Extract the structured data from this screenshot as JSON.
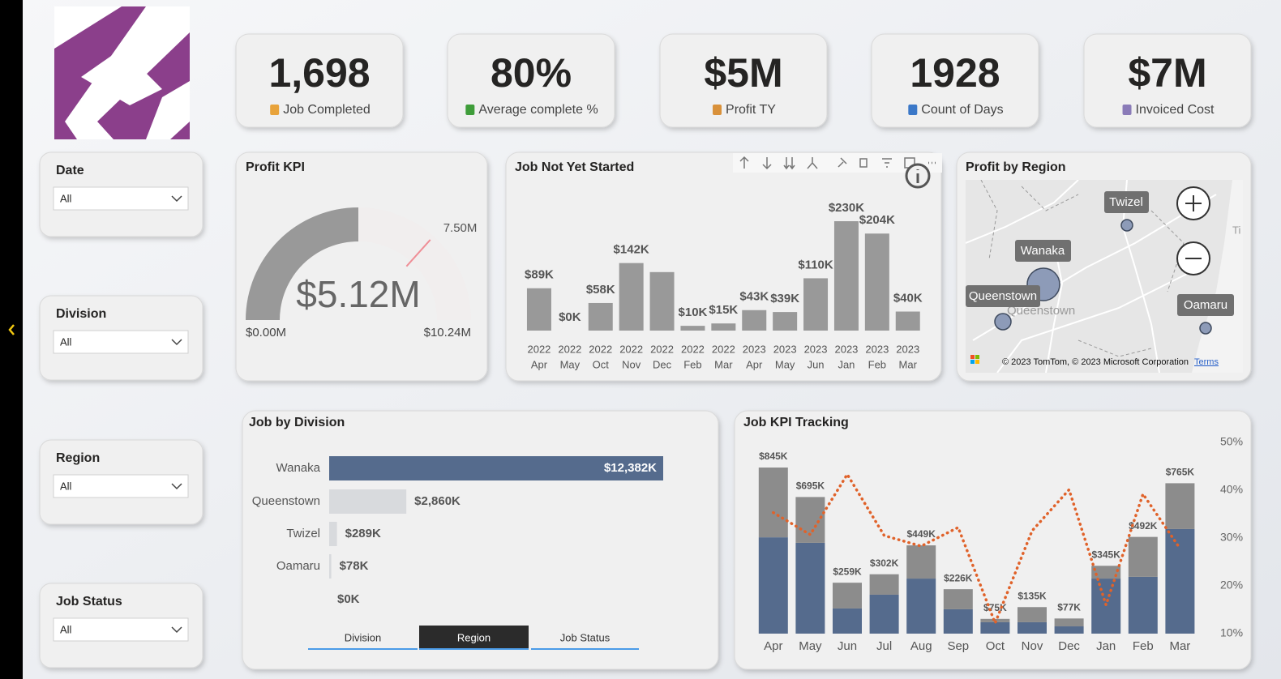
{
  "kpi_cards": [
    {
      "value": "1,698",
      "label": "Job Completed"
    },
    {
      "value": "80%",
      "label": "Average complete %"
    },
    {
      "value": "$5M",
      "label": "Profit TY"
    },
    {
      "value": "1928",
      "label": "Count of Days"
    },
    {
      "value": "$7M",
      "label": "Invoiced Cost"
    }
  ],
  "slicers": [
    {
      "title": "Date",
      "selection": "All"
    },
    {
      "title": "Division",
      "selection": "All"
    },
    {
      "title": "Region",
      "selection": "All"
    },
    {
      "title": "Job Status",
      "selection": "All"
    }
  ],
  "map": {
    "title": "Profit by Region",
    "places": [
      "Twizel",
      "Wanaka",
      "Queenstown",
      "Oamaru"
    ],
    "basemap_label": "Queenstown",
    "attribution": "© 2023 TomTom, © 2023 Microsoft Corporation",
    "terms": "Terms"
  },
  "tabs": [
    "Division",
    "Region",
    "Job Status"
  ],
  "chart_data": [
    {
      "type": "gauge",
      "title": "Profit KPI",
      "value": 5.12,
      "value_label": "$5.12M",
      "min": 0,
      "min_label": "$0.00M",
      "max": 10.24,
      "max_label": "$10.24M",
      "target": 7.5,
      "target_label": "7.50M",
      "color": "#999999",
      "target_color": "#ef8e96"
    },
    {
      "type": "bar",
      "title": "Job Not Yet Started",
      "categories": [
        [
          "2022",
          "Apr"
        ],
        [
          "2022",
          "May"
        ],
        [
          "2022",
          "Oct"
        ],
        [
          "2022",
          "Nov"
        ],
        [
          "2022",
          "Dec"
        ],
        [
          "2022",
          "Feb"
        ],
        [
          "2022",
          "Mar"
        ],
        [
          "2023",
          "Apr"
        ],
        [
          "2023",
          "May"
        ],
        [
          "2023",
          "Jun"
        ],
        [
          "2023",
          "Jan"
        ],
        [
          "2023",
          "Feb"
        ],
        [
          "2023",
          "Mar"
        ]
      ],
      "values": [
        89,
        0,
        58,
        142,
        123,
        10,
        15,
        43,
        39,
        110,
        230,
        204,
        40
      ],
      "value_labels": [
        "$89K",
        "$0K",
        "$58K",
        "$142K",
        null,
        "$10K",
        "$15K",
        "$43K",
        "$39K",
        "$110K",
        "$230K",
        "$204K",
        "$40K"
      ],
      "color": "#999999"
    },
    {
      "type": "hbar",
      "title": "Job by Division",
      "categories": [
        "Wanaka",
        "Queenstown",
        "Twizel",
        "Oamaru",
        null
      ],
      "values": [
        12382,
        2860,
        289,
        78,
        0
      ],
      "value_labels": [
        "$12,382K",
        "$2,860K",
        "$289K",
        "$78K",
        "$0K"
      ],
      "colors": [
        "#556b8d",
        "#d8dadd",
        "#d8dadd",
        "#d8dadd",
        "#d8dadd"
      ]
    },
    {
      "type": "combo",
      "title": "Job KPI Tracking",
      "categories": [
        "Apr",
        "May",
        "Jun",
        "Jul",
        "Aug",
        "Sep",
        "Oct",
        "Nov",
        "Dec",
        "Jan",
        "Feb",
        "Mar"
      ],
      "series": [
        {
          "color": "#556b8d",
          "values": [
            490,
            462,
            128,
            198,
            280,
            124,
            58,
            58,
            37,
            280,
            289,
            532
          ]
        },
        {
          "color": "#8c8c8c",
          "values": [
            355,
            233,
            131,
            104,
            169,
            102,
            17,
            77,
            40,
            65,
            203,
            233
          ]
        },
        {
          "color": "#e0622a",
          "axis": "y2",
          "values": [
            35.3,
            30.7,
            43.3,
            30.5,
            28.3,
            32.2,
            12.2,
            31.5,
            40.1,
            16,
            39.2,
            27.8
          ]
        }
      ],
      "totals": [
        845,
        695,
        259,
        302,
        449,
        226,
        75,
        135,
        77,
        345,
        492,
        765
      ],
      "total_labels": [
        "$845K",
        "$695K",
        "$259K",
        "$302K",
        "$449K",
        "$226K",
        "$75K",
        "$135K",
        "$77K",
        "$345K",
        "$492K",
        "$765K"
      ],
      "y2lim": [
        10,
        51
      ],
      "y2ticks": [
        {
          "value": 10,
          "label": "10%"
        },
        {
          "value": 20,
          "label": "20%"
        },
        {
          "value": 30,
          "label": "30%"
        },
        {
          "value": 40,
          "label": "40%"
        },
        {
          "value": 50,
          "label": "50%"
        }
      ],
      "grid": false
    }
  ]
}
